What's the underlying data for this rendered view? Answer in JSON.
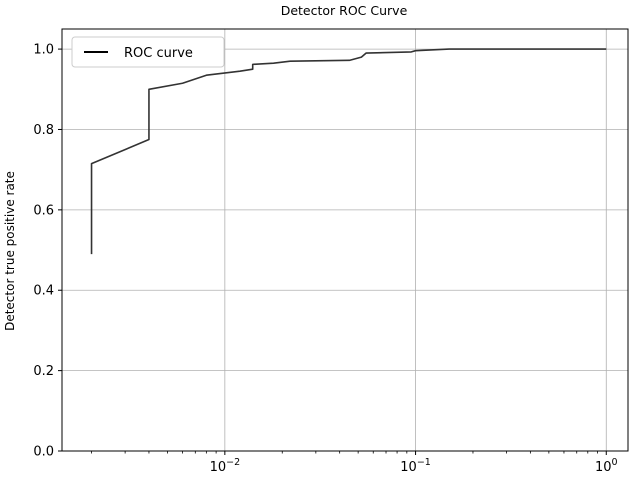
{
  "chart_data": {
    "type": "line",
    "title": "Detector ROC Curve",
    "xlabel": "",
    "ylabel": "Detector true positive rate",
    "xscale": "log",
    "xlim": [
      0.0014,
      1.3
    ],
    "ylim": [
      0.0,
      1.05
    ],
    "grid": true,
    "legend_position": "top-left",
    "x_ticks": [
      {
        "value": 0.01,
        "base": "10",
        "exp": "−2"
      },
      {
        "value": 0.1,
        "base": "10",
        "exp": "−1"
      },
      {
        "value": 1,
        "base": "10",
        "exp": "0"
      }
    ],
    "y_ticks": [
      {
        "value": 0.0,
        "label": "0.0"
      },
      {
        "value": 0.2,
        "label": "0.2"
      },
      {
        "value": 0.4,
        "label": "0.4"
      },
      {
        "value": 0.6,
        "label": "0.6"
      },
      {
        "value": 0.8,
        "label": "0.8"
      },
      {
        "value": 1.0,
        "label": "1.0"
      }
    ],
    "series": [
      {
        "name": "ROC curve",
        "color": "#333333",
        "points": [
          [
            0.002,
            0.49
          ],
          [
            0.002,
            0.715
          ],
          [
            0.004,
            0.775
          ],
          [
            0.004,
            0.9
          ],
          [
            0.006,
            0.915
          ],
          [
            0.008,
            0.935
          ],
          [
            0.012,
            0.945
          ],
          [
            0.014,
            0.95
          ],
          [
            0.014,
            0.962
          ],
          [
            0.018,
            0.965
          ],
          [
            0.022,
            0.97
          ],
          [
            0.045,
            0.972
          ],
          [
            0.052,
            0.98
          ],
          [
            0.055,
            0.99
          ],
          [
            0.095,
            0.993
          ],
          [
            0.1,
            0.996
          ],
          [
            0.15,
            1.0
          ],
          [
            1.0,
            1.0
          ]
        ]
      }
    ]
  }
}
